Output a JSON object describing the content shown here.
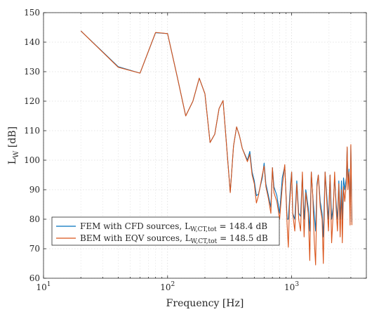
{
  "chart_data": {
    "type": "line",
    "xlabel": "Frequency [Hz]",
    "ylabel_main": "L",
    "ylabel_sub": "W",
    "ylabel_unit": " [dB]",
    "xscale": "log",
    "xlim": [
      10,
      4000
    ],
    "ylim": [
      60,
      150
    ],
    "grid": true,
    "legend_placement": "lower-left",
    "x_ticks": [
      {
        "base": "10",
        "exp": "1",
        "value": 10
      },
      {
        "base": "10",
        "exp": "2",
        "value": 100
      },
      {
        "base": "10",
        "exp": "3",
        "value": 1000
      }
    ],
    "y_ticks": [
      "60",
      "70",
      "80",
      "90",
      "100",
      "110",
      "120",
      "130",
      "140",
      "150"
    ],
    "series": [
      {
        "legend_main": "FEM with CFD sources, L",
        "legend_sub": "W,CT,tot",
        "legend_tail": " = 148.4 dB",
        "color": "#0072BD",
        "points": [
          [
            20,
            143.8
          ],
          [
            40,
            131.7
          ],
          [
            60,
            129.5
          ],
          [
            80,
            143.2
          ],
          [
            100,
            142.9
          ],
          [
            120,
            128
          ],
          [
            140,
            115
          ],
          [
            160,
            120
          ],
          [
            180,
            127.8
          ],
          [
            200,
            122.5
          ],
          [
            220,
            106
          ],
          [
            240,
            108.8
          ],
          [
            260,
            117.5
          ],
          [
            280,
            120.2
          ],
          [
            320,
            89.2
          ],
          [
            340,
            104.8
          ],
          [
            360,
            111.3
          ],
          [
            380,
            108.2
          ],
          [
            400,
            104
          ],
          [
            440,
            100
          ],
          [
            460,
            103
          ],
          [
            480,
            96
          ],
          [
            500,
            93
          ],
          [
            520,
            88
          ],
          [
            540,
            88.5
          ],
          [
            580,
            94
          ],
          [
            600,
            99
          ],
          [
            620,
            92
          ],
          [
            650,
            88
          ],
          [
            680,
            84
          ],
          [
            700,
            97.5
          ],
          [
            720,
            91
          ],
          [
            760,
            88
          ],
          [
            800,
            82
          ],
          [
            840,
            94
          ],
          [
            880,
            98
          ],
          [
            920,
            80
          ],
          [
            940,
            80
          ],
          [
            960,
            86
          ],
          [
            980,
            92
          ],
          [
            1000,
            96
          ],
          [
            1020,
            82
          ],
          [
            1060,
            80
          ],
          [
            1100,
            93
          ],
          [
            1140,
            82
          ],
          [
            1180,
            81
          ],
          [
            1220,
            95
          ],
          [
            1260,
            80
          ],
          [
            1300,
            90
          ],
          [
            1360,
            84
          ],
          [
            1400,
            76
          ],
          [
            1440,
            96
          ],
          [
            1480,
            88
          ],
          [
            1520,
            82
          ],
          [
            1560,
            76
          ],
          [
            1600,
            92
          ],
          [
            1640,
            95
          ],
          [
            1700,
            86
          ],
          [
            1760,
            82
          ],
          [
            1800,
            74
          ],
          [
            1860,
            96
          ],
          [
            1920,
            88
          ],
          [
            1980,
            80
          ],
          [
            2040,
            95
          ],
          [
            2100,
            80
          ],
          [
            2160,
            84
          ],
          [
            2220,
            94
          ],
          [
            2280,
            86
          ],
          [
            2340,
            80
          ],
          [
            2400,
            93
          ],
          [
            2460,
            80
          ],
          [
            2520,
            93
          ],
          [
            2560,
            80
          ],
          [
            2620,
            94
          ],
          [
            2680,
            90
          ],
          [
            2760,
            94
          ],
          [
            2800,
            104.2
          ],
          [
            2840,
            92.5
          ],
          [
            2900,
            97
          ],
          [
            2960,
            82
          ],
          [
            3000,
            104.8
          ],
          [
            3060,
            79
          ]
        ]
      },
      {
        "legend_main": "BEM with EQV sources, L",
        "legend_sub": "W,CT,tot",
        "legend_tail": " = 148.5 dB",
        "color": "#D95319",
        "points": [
          [
            20,
            143.8
          ],
          [
            40,
            131.5
          ],
          [
            60,
            129.5
          ],
          [
            80,
            143.3
          ],
          [
            100,
            142.9
          ],
          [
            120,
            128
          ],
          [
            140,
            115
          ],
          [
            160,
            120
          ],
          [
            180,
            127.8
          ],
          [
            200,
            122.5
          ],
          [
            220,
            106
          ],
          [
            240,
            108.8
          ],
          [
            260,
            117.5
          ],
          [
            280,
            120.2
          ],
          [
            320,
            89
          ],
          [
            340,
            104.8
          ],
          [
            360,
            111.3
          ],
          [
            380,
            108.2
          ],
          [
            400,
            104
          ],
          [
            440,
            99.5
          ],
          [
            460,
            102
          ],
          [
            480,
            95
          ],
          [
            500,
            92
          ],
          [
            520,
            85.5
          ],
          [
            540,
            88
          ],
          [
            580,
            95
          ],
          [
            600,
            98
          ],
          [
            620,
            91
          ],
          [
            650,
            87
          ],
          [
            680,
            82
          ],
          [
            700,
            97.5
          ],
          [
            720,
            89
          ],
          [
            760,
            86
          ],
          [
            800,
            80
          ],
          [
            840,
            91
          ],
          [
            880,
            98.5
          ],
          [
            920,
            78
          ],
          [
            940,
            70.5
          ],
          [
            960,
            84
          ],
          [
            980,
            90
          ],
          [
            1000,
            96
          ],
          [
            1020,
            82
          ],
          [
            1060,
            76
          ],
          [
            1100,
            92
          ],
          [
            1140,
            80
          ],
          [
            1180,
            76
          ],
          [
            1220,
            96
          ],
          [
            1260,
            74
          ],
          [
            1300,
            89
          ],
          [
            1360,
            82
          ],
          [
            1400,
            66
          ],
          [
            1440,
            96
          ],
          [
            1480,
            88
          ],
          [
            1520,
            73
          ],
          [
            1560,
            64.5
          ],
          [
            1600,
            91
          ],
          [
            1640,
            95
          ],
          [
            1700,
            84
          ],
          [
            1760,
            80
          ],
          [
            1800,
            65
          ],
          [
            1860,
            96
          ],
          [
            1920,
            86
          ],
          [
            1980,
            76
          ],
          [
            2040,
            95
          ],
          [
            2100,
            72
          ],
          [
            2160,
            82
          ],
          [
            2220,
            96
          ],
          [
            2280,
            84
          ],
          [
            2340,
            76
          ],
          [
            2400,
            92
          ],
          [
            2460,
            74
          ],
          [
            2520,
            90
          ],
          [
            2560,
            72
          ],
          [
            2620,
            91
          ],
          [
            2680,
            86
          ],
          [
            2760,
            92
          ],
          [
            2800,
            104.5
          ],
          [
            2840,
            90
          ],
          [
            2900,
            96
          ],
          [
            2960,
            78
          ],
          [
            3000,
            105.3
          ],
          [
            3060,
            78
          ]
        ]
      }
    ]
  }
}
